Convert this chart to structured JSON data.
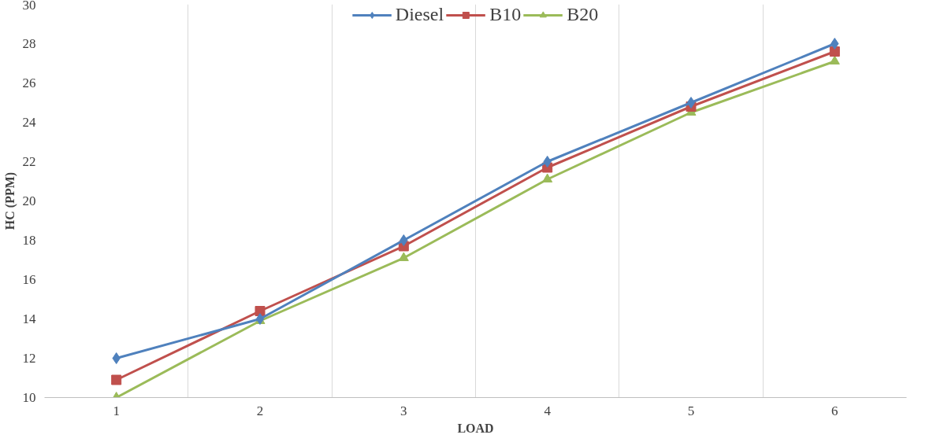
{
  "chart_data": {
    "type": "line",
    "xlabel": "LOAD",
    "ylabel": "HC (PPM)",
    "categories": [
      "1",
      "2",
      "3",
      "4",
      "5",
      "6"
    ],
    "series": [
      {
        "name": "Diesel",
        "color": "#4f81bd",
        "marker": "diamond",
        "values": [
          12,
          14,
          18,
          22,
          25,
          28
        ]
      },
      {
        "name": "B10",
        "color": "#c0504d",
        "marker": "square",
        "values": [
          10.9,
          14.4,
          17.7,
          21.7,
          24.8,
          27.6
        ]
      },
      {
        "name": "B20",
        "color": "#9bbb59",
        "marker": "triangle",
        "values": [
          10,
          13.9,
          17.1,
          21.1,
          24.5,
          27.1
        ]
      }
    ],
    "ylim": [
      10,
      30
    ],
    "yticks": [
      10,
      12,
      14,
      16,
      18,
      20,
      22,
      24,
      26,
      28,
      30
    ],
    "grid": "x",
    "legend": "top",
    "line_style": "solid"
  }
}
